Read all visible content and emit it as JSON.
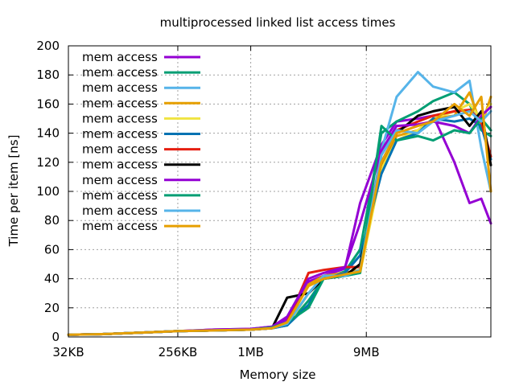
{
  "chart_data": {
    "type": "line",
    "title": "multiprocessed linked list access times",
    "xlabel": "Memory size",
    "ylabel": "Time per item [ns]",
    "x_scale": "log2",
    "xlim": [
      "32KB",
      "~96MB"
    ],
    "ylim": [
      0,
      200
    ],
    "y_ticks": [
      0,
      20,
      40,
      60,
      80,
      100,
      120,
      140,
      160,
      180,
      200
    ],
    "x_ticks": [
      {
        "label": "32KB",
        "kb": 32
      },
      {
        "label": "256KB",
        "kb": 256
      },
      {
        "label": "1MB",
        "kb": 1024
      },
      {
        "label": "9MB",
        "kb": 9216
      }
    ],
    "grid": true,
    "legend_position": "top-left",
    "x_kb": [
      32,
      64,
      128,
      256,
      512,
      1024,
      1536,
      2048,
      3072,
      4096,
      6144,
      8192,
      12288,
      16384,
      24576,
      32768,
      49152,
      65536,
      81920,
      98304
    ],
    "series": [
      {
        "name": "mem access",
        "color": "#9400d3",
        "values": [
          1.5,
          2,
          3,
          4,
          5,
          5.5,
          7,
          12,
          38,
          42,
          47,
          92,
          132,
          148,
          150,
          152,
          120,
          92,
          95,
          78
        ]
      },
      {
        "name": "mem access",
        "color": "#009e73",
        "values": [
          1.5,
          2,
          3,
          4,
          4.5,
          5,
          6,
          8,
          25,
          40,
          45,
          60,
          140,
          148,
          155,
          162,
          168,
          160,
          142,
          138
        ]
      },
      {
        "name": "mem access",
        "color": "#56b4e9",
        "values": [
          1.5,
          2,
          3,
          4,
          4.5,
          5,
          6,
          8,
          30,
          42,
          42,
          44,
          128,
          165,
          182,
          172,
          168,
          176,
          130,
          100
        ]
      },
      {
        "name": "mem access",
        "color": "#e69f00",
        "values": [
          1.5,
          2,
          3,
          4,
          4.5,
          5,
          6,
          9,
          36,
          42,
          44,
          46,
          118,
          138,
          142,
          150,
          152,
          168,
          145,
          165
        ]
      },
      {
        "name": "mem access",
        "color": "#f0e442",
        "values": [
          1.5,
          2,
          3,
          4,
          4.5,
          5,
          6,
          8,
          30,
          40,
          44,
          44,
          115,
          135,
          142,
          150,
          155,
          160,
          150,
          160
        ]
      },
      {
        "name": "mem access",
        "color": "#0072b2",
        "values": [
          1.5,
          2,
          3,
          4,
          4.5,
          5,
          6,
          8,
          22,
          40,
          44,
          56,
          112,
          135,
          140,
          150,
          148,
          150,
          145,
          122
        ]
      },
      {
        "name": "mem access",
        "color": "#e51e10",
        "values": [
          1.5,
          2,
          3,
          4,
          4.5,
          5,
          6,
          10,
          44,
          46,
          48,
          48,
          125,
          142,
          148,
          152,
          155,
          156,
          148,
          124
        ]
      },
      {
        "name": "mem access",
        "color": "#000000",
        "values": [
          1.5,
          2,
          3,
          4,
          4.5,
          5,
          6,
          27,
          30,
          40,
          42,
          50,
          120,
          140,
          152,
          155,
          158,
          145,
          155,
          118
        ]
      },
      {
        "name": "mem access",
        "color": "#9400d3",
        "values": [
          1.5,
          2,
          3,
          4,
          5,
          5.5,
          7,
          14,
          40,
          44,
          48,
          78,
          128,
          145,
          146,
          148,
          145,
          140,
          152,
          158
        ]
      },
      {
        "name": "mem access",
        "color": "#009e73",
        "values": [
          1.5,
          2,
          3,
          4,
          4.5,
          5,
          6.5,
          10,
          20,
          40,
          42,
          44,
          145,
          135,
          138,
          135,
          142,
          140,
          150,
          142
        ]
      },
      {
        "name": "mem access",
        "color": "#56b4e9",
        "values": [
          1.5,
          2,
          3,
          4,
          4.5,
          5,
          6,
          9,
          30,
          42,
          42,
          46,
          125,
          142,
          140,
          148,
          152,
          155,
          148,
          155
        ]
      },
      {
        "name": "mem access",
        "color": "#e69f00",
        "values": [
          1.5,
          2,
          3,
          4,
          4.5,
          5,
          6,
          10,
          35,
          40,
          43,
          45,
          120,
          140,
          145,
          148,
          160,
          152,
          165,
          100
        ]
      }
    ]
  }
}
